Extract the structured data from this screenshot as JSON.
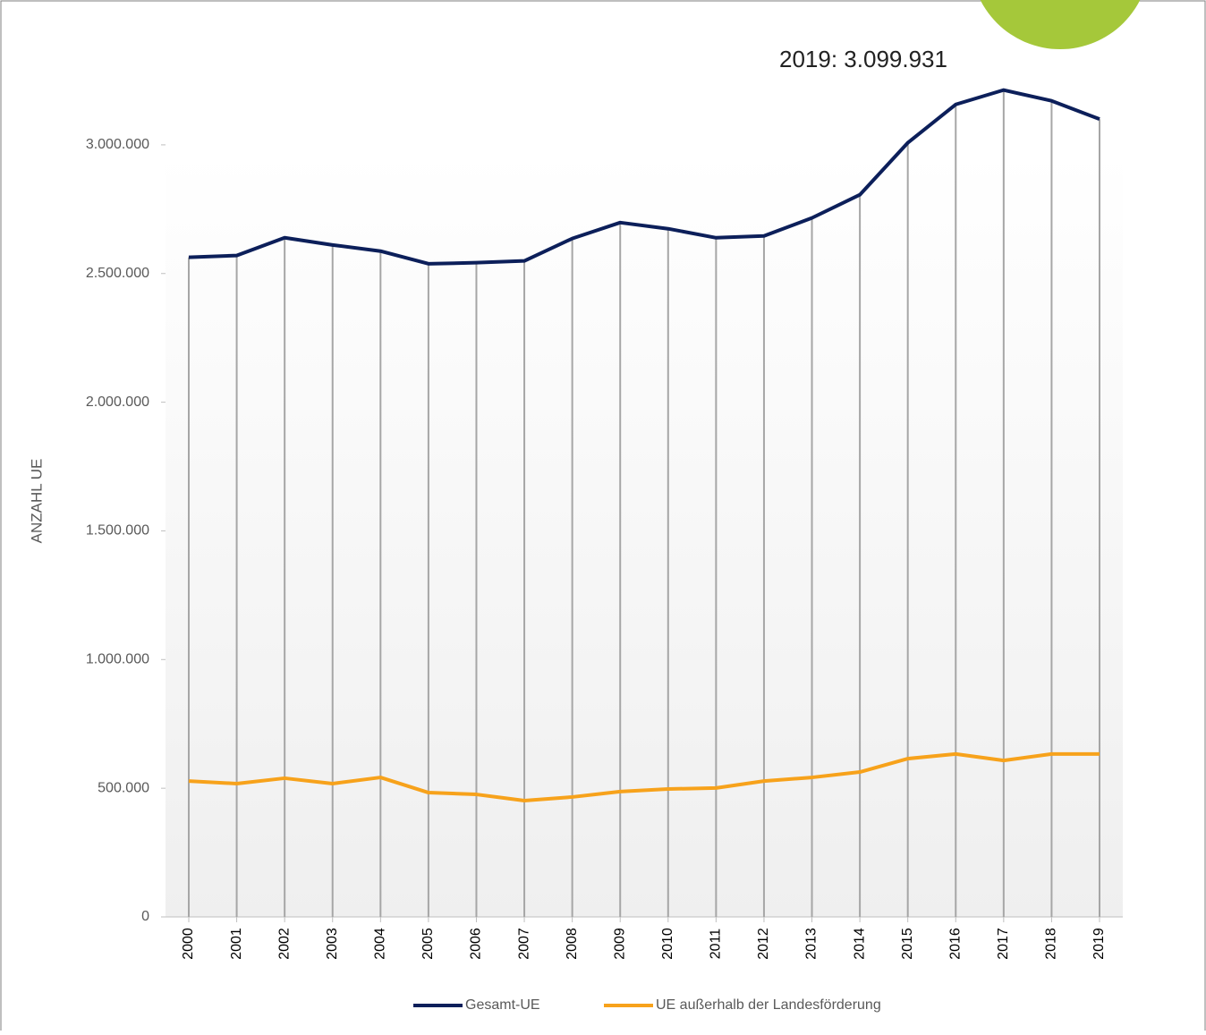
{
  "chart_data": {
    "type": "line",
    "annotation": "2019: 3.099.931",
    "y_axis_label": "ANZAHL UE",
    "categories": [
      "2000",
      "2001",
      "2002",
      "2003",
      "2004",
      "2005",
      "2006",
      "2007",
      "2008",
      "2009",
      "2010",
      "2011",
      "2012",
      "2013",
      "2014",
      "2015",
      "2016",
      "2017",
      "2018",
      "2019"
    ],
    "series": [
      {
        "name": "Gesamt-UE",
        "color": "#0c1f5a",
        "values": [
          2563000,
          2570000,
          2639000,
          2611000,
          2587000,
          2538000,
          2542000,
          2549000,
          2636000,
          2698000,
          2674000,
          2639000,
          2646000,
          2716000,
          2806000,
          3008000,
          3157000,
          3213000,
          3171000,
          3099931
        ]
      },
      {
        "name": "UE außerhalb der Landesförderung",
        "color": "#f7a21b",
        "values": [
          528000,
          518000,
          539000,
          518000,
          542000,
          483000,
          476000,
          452000,
          466000,
          487000,
          497000,
          501000,
          528000,
          542000,
          563000,
          615000,
          633000,
          608000,
          633000,
          633000
        ]
      }
    ],
    "ylim": [
      0,
      3250000
    ],
    "yticks": [
      0,
      {
        "value": 500000,
        "label": "500.000"
      },
      {
        "value": 1000000,
        "label": "1.000.000"
      },
      {
        "value": 1500000,
        "label": "1.500.000"
      },
      {
        "value": 2000000,
        "label": "2.000.000"
      },
      {
        "value": 2500000,
        "label": "2.500.000"
      },
      {
        "value": 3000000,
        "label": "3.000.000"
      }
    ],
    "drop_lines": true
  }
}
